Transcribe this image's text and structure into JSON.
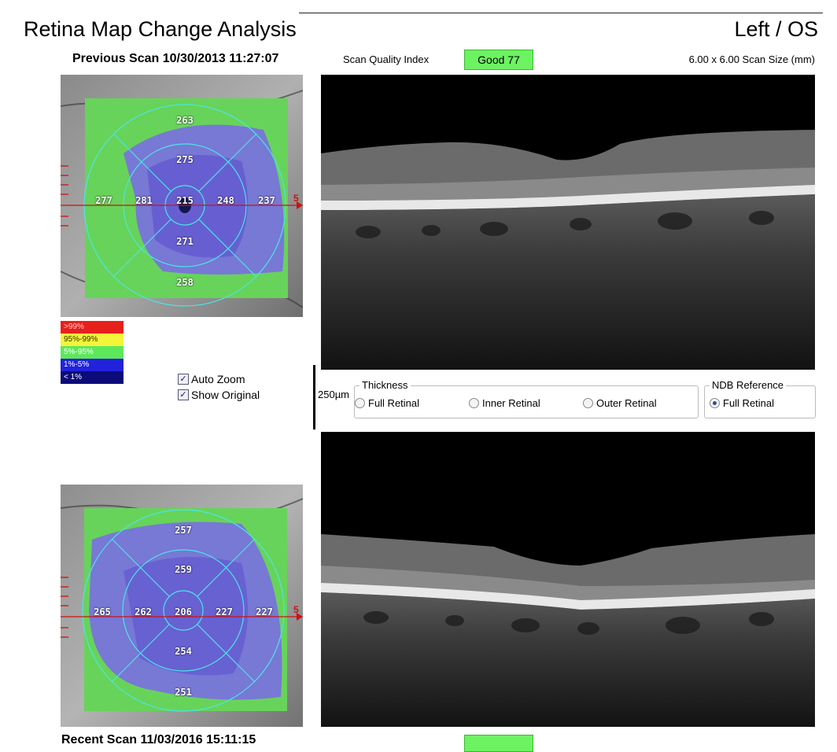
{
  "header": {
    "title": "Retina Map Change Analysis",
    "eye": "Left / OS"
  },
  "previous_scan": {
    "label": "Previous Scan 10/30/2013 11:27:07",
    "scan_quality_label": "Scan Quality Index",
    "scan_quality_value": "Good  77",
    "scan_size": "6.00 x 6.00 Scan Size (mm)",
    "axis_label": "5",
    "sectors": {
      "superior_outer": "263",
      "superior_inner": "275",
      "temporal_outer": "277",
      "temporal_inner": "281",
      "center": "215",
      "nasal_inner": "248",
      "nasal_outer": "237",
      "inferior_inner": "271",
      "inferior_outer": "258"
    }
  },
  "recent_scan": {
    "label": "Recent Scan 11/03/2016 15:11:15",
    "axis_label": "5",
    "sectors": {
      "superior_outer": "257",
      "superior_inner": "259",
      "temporal_outer": "265",
      "temporal_inner": "262",
      "center": "206",
      "nasal_inner": "227",
      "nasal_outer": "227",
      "inferior_inner": "254",
      "inferior_outer": "251"
    }
  },
  "legend": [
    {
      "label": ">99%",
      "color": "#e8201c",
      "text_color": "#ffd0d0"
    },
    {
      "label": "95%-99%",
      "color": "#f4f43a",
      "text_color": "#333300"
    },
    {
      "label": "5%-95%",
      "color": "#5de85a",
      "text_color": "#ffffff"
    },
    {
      "label": "1%-5%",
      "color": "#2222dd",
      "text_color": "#ffffff"
    },
    {
      "label": "< 1%",
      "color": "#0b0b7a",
      "text_color": "#ffffff"
    }
  ],
  "options": {
    "auto_zoom": "Auto Zoom",
    "show_original": "Show Original"
  },
  "scale_label": "250µm",
  "thickness": {
    "legend": "Thickness",
    "full_retinal": "Full Retinal",
    "inner_retinal": "Inner Retinal",
    "outer_retinal": "Outer Retinal"
  },
  "ndb_reference": {
    "legend": "NDB Reference",
    "full_retinal": "Full Retinal"
  },
  "colors": {
    "quality_good": "#6df262",
    "grid": "#48e6e6",
    "axis": "#d01010"
  }
}
